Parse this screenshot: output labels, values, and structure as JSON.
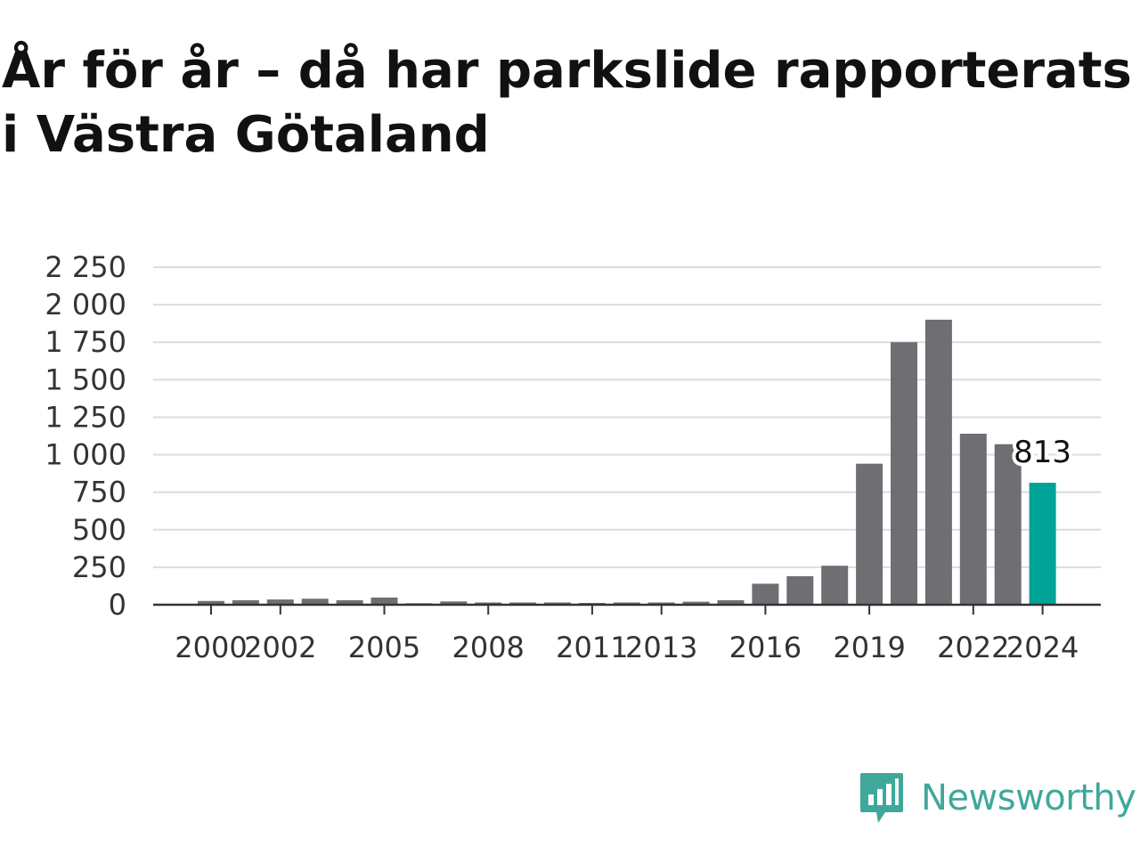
{
  "title": "År för år – då har parkslide rapporterats i Västra Götaland",
  "brand": {
    "name": "Newsworthy",
    "icon": "newsworthy-logo-icon",
    "color": "#3fa89b"
  },
  "chart_data": {
    "type": "bar",
    "x": [
      2000,
      2001,
      2002,
      2003,
      2004,
      2005,
      2006,
      2007,
      2008,
      2009,
      2010,
      2011,
      2012,
      2013,
      2014,
      2015,
      2016,
      2017,
      2018,
      2019,
      2020,
      2021,
      2022,
      2023,
      2024
    ],
    "values": [
      25,
      30,
      35,
      40,
      30,
      48,
      10,
      22,
      15,
      15,
      15,
      12,
      15,
      15,
      20,
      30,
      140,
      190,
      260,
      940,
      1750,
      1900,
      1140,
      1070,
      813
    ],
    "x_tick_labels": [
      "2000",
      "2002",
      "2005",
      "2008",
      "2011",
      "2013",
      "2016",
      "2019",
      "2022",
      "2024"
    ],
    "y_ticks": [
      0,
      250,
      500,
      750,
      1000,
      1250,
      1500,
      1750,
      2000,
      2250
    ],
    "y_tick_labels": [
      "0",
      "250",
      "500",
      "750",
      "1 000",
      "1 250",
      "1 500",
      "1 750",
      "2 000",
      "2 250"
    ],
    "ylim": [
      0,
      2250
    ],
    "grid": true,
    "bar_color": "#6f6e73",
    "highlight_color": "#00a398",
    "highlight": {
      "x": 2024,
      "label": "813"
    }
  }
}
